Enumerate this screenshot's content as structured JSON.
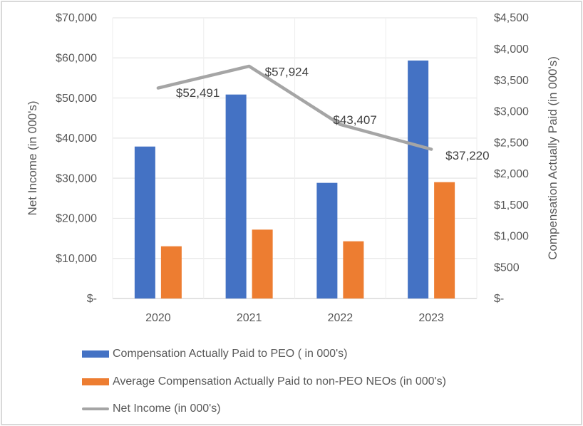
{
  "chart_data": {
    "type": "bar",
    "title": "",
    "categories": [
      "2020",
      "2021",
      "2022",
      "2023"
    ],
    "series": [
      {
        "name": "Compensation Actually Paid to PEO ( in 000's)",
        "type": "bar",
        "axis": "right",
        "color": "#4472C4",
        "values": [
          2436,
          3270,
          1854,
          3815
        ]
      },
      {
        "name": "Average Compensation Actually Paid to non-PEO NEOs  (in 000's)",
        "type": "bar",
        "axis": "right",
        "color": "#ED7D31",
        "values": [
          837,
          1104,
          917,
          1865
        ]
      },
      {
        "name": "Net Income (in 000's)",
        "type": "line",
        "axis": "left",
        "color": "#A5A5A5",
        "values": [
          52491,
          57924,
          43407,
          37220
        ],
        "data_labels": [
          "$52,491",
          "$57,924",
          "$43,407",
          "$37,220"
        ]
      }
    ],
    "left_axis": {
      "label": "Net Income (in 000's)",
      "range": [
        0,
        70000
      ],
      "ticks": [
        0,
        10000,
        20000,
        30000,
        40000,
        50000,
        60000,
        70000
      ],
      "tick_labels": [
        "$-",
        "$10,000",
        "$20,000",
        "$30,000",
        "$40,000",
        "$50,000",
        "$60,000",
        "$70,000"
      ]
    },
    "right_axis": {
      "label": "Compensation Actually Paid (in 000's)",
      "range": [
        0,
        4500
      ],
      "ticks": [
        0,
        500,
        1000,
        1500,
        2000,
        2500,
        3000,
        3500,
        4000,
        4500
      ],
      "tick_labels": [
        "$-",
        "$500",
        "$1,000",
        "$1,500",
        "$2,000",
        "$2,500",
        "$3,000",
        "$3,500",
        "$4,000",
        "$4,500"
      ]
    },
    "xlabel": "",
    "grid": true,
    "legend_position": "bottom-left"
  },
  "colors": {
    "grid": "#e6e6e6",
    "tick_text": "#595959",
    "border": "#d9d9d9"
  }
}
